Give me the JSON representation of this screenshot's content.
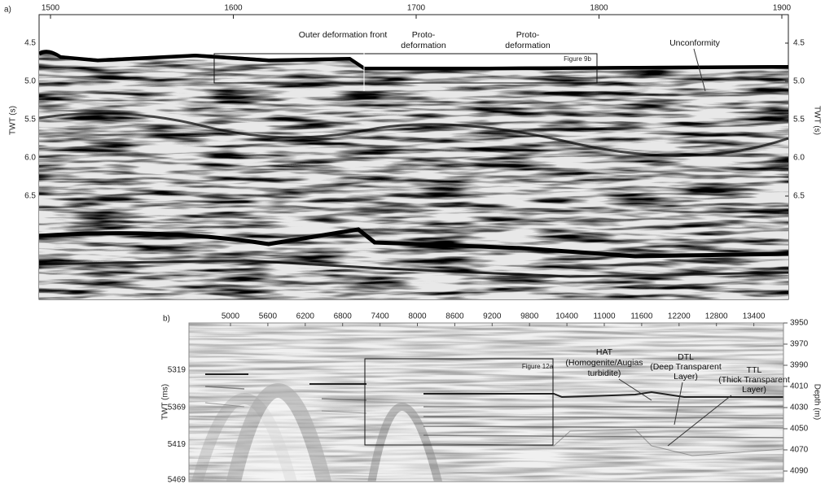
{
  "panel_a": {
    "label": "a)",
    "x_ticks": [
      "1500",
      "1600",
      "1700",
      "1800",
      "1900"
    ],
    "y_ticks": [
      "4.5",
      "5.0",
      "5.5",
      "6.0",
      "6.5"
    ],
    "y_label_left": "TWT (s)",
    "y_label_right": "TWT (s)",
    "outer_front": "Outer deformation front",
    "proto_1": [
      "Proto-",
      "deformation"
    ],
    "proto_2": [
      "Proto-",
      "deformation"
    ],
    "unconformity": "Unconformity",
    "figure_box": "Figure 9b"
  },
  "panel_b": {
    "label": "b)",
    "x_ticks": [
      "5000",
      "5600",
      "6200",
      "6800",
      "7400",
      "8000",
      "8600",
      "9200",
      "9800",
      "10400",
      "11000",
      "11600",
      "12200",
      "12800",
      "13400"
    ],
    "y_ticks_left": [
      "5319",
      "5369",
      "5419",
      "5469"
    ],
    "y_ticks_right": [
      "3950",
      "3970",
      "3990",
      "4010",
      "4030",
      "4050",
      "4070",
      "4090"
    ],
    "y_label_left": "TWT (ms)",
    "y_label_right": "Depth (m)",
    "hat": [
      "HAT",
      "(Homogenite/Augias",
      "turbidite)"
    ],
    "dtl": [
      "DTL",
      "(Deep Transparent",
      "Layer)"
    ],
    "ttl": [
      "TTL",
      "(Thick Transparent",
      "Layer)"
    ],
    "figure_box": "Figure 12a"
  }
}
